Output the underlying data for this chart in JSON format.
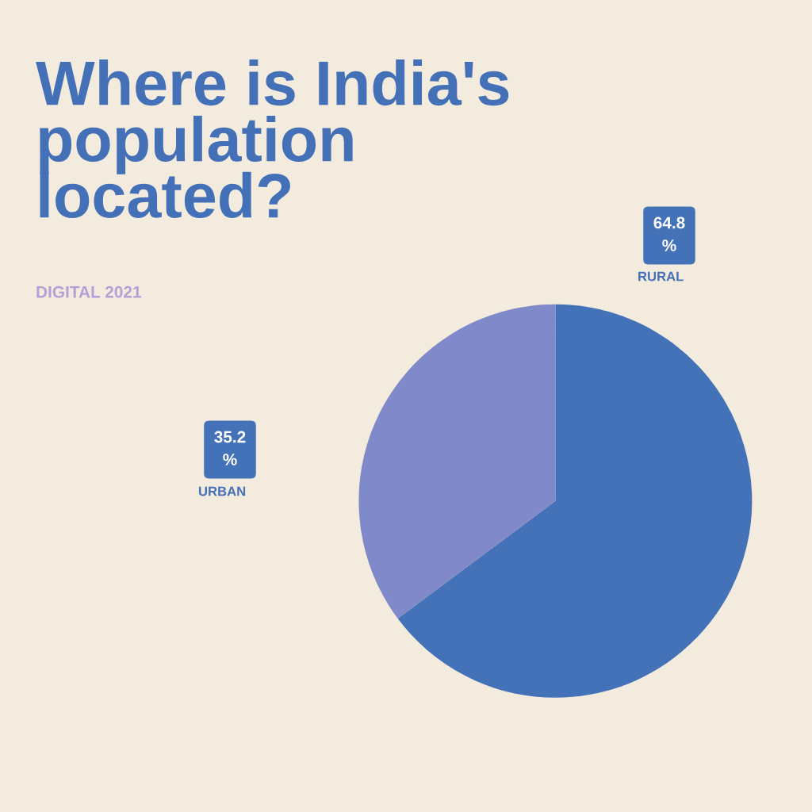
{
  "chart_data": {
    "type": "pie",
    "title": "Where is India's\npopulation\nlocated?",
    "subtitle": "DIGITAL 2021",
    "categories": [
      "RURAL",
      "URBAN"
    ],
    "values": [
      64.8,
      35.2
    ],
    "colors": [
      "#4472b8",
      "#8089c9"
    ],
    "value_labels": [
      "64.8\n%",
      "35.2\n%"
    ]
  }
}
